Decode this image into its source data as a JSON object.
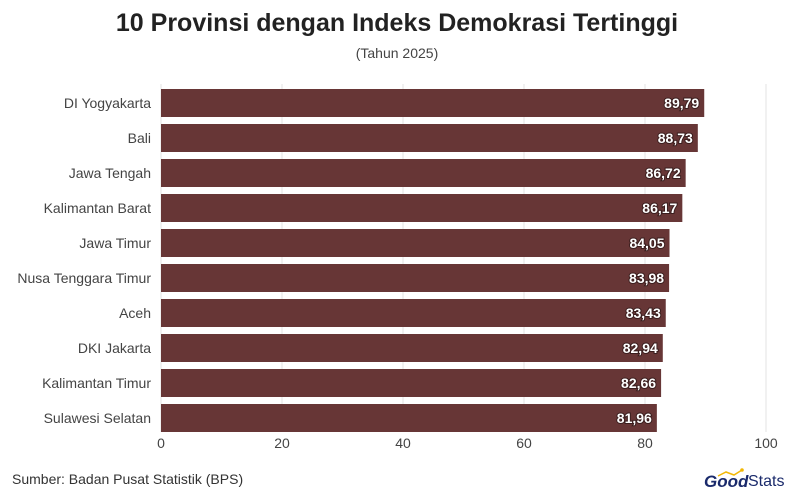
{
  "chart_data": {
    "type": "bar",
    "orientation": "horizontal",
    "title": "10 Provinsi dengan Indeks Demokrasi Tertinggi",
    "subtitle": "(Tahun 2025)",
    "categories": [
      "DI Yogyakarta",
      "Bali",
      "Jawa Tengah",
      "Kalimantan Barat",
      "Jawa Timur",
      "Nusa Tenggara Timur",
      "Aceh",
      "DKI Jakarta",
      "Kalimantan Timur",
      "Sulawesi Selatan"
    ],
    "values": [
      89.79,
      88.73,
      86.72,
      86.17,
      84.05,
      83.98,
      83.43,
      82.94,
      82.66,
      81.96
    ],
    "value_labels": [
      "89,79",
      "88,73",
      "86,72",
      "86,17",
      "84,05",
      "83,98",
      "83,43",
      "82,94",
      "82,66",
      "81,96"
    ],
    "xlim": [
      0,
      100
    ],
    "xticks": [
      0,
      20,
      40,
      60,
      80,
      100
    ],
    "grid": true,
    "bar_color": "#673636"
  },
  "source": "Sumber: Badan Pusat Statistik (BPS)",
  "logo": {
    "part1": "Good",
    "part2": "Stats"
  }
}
